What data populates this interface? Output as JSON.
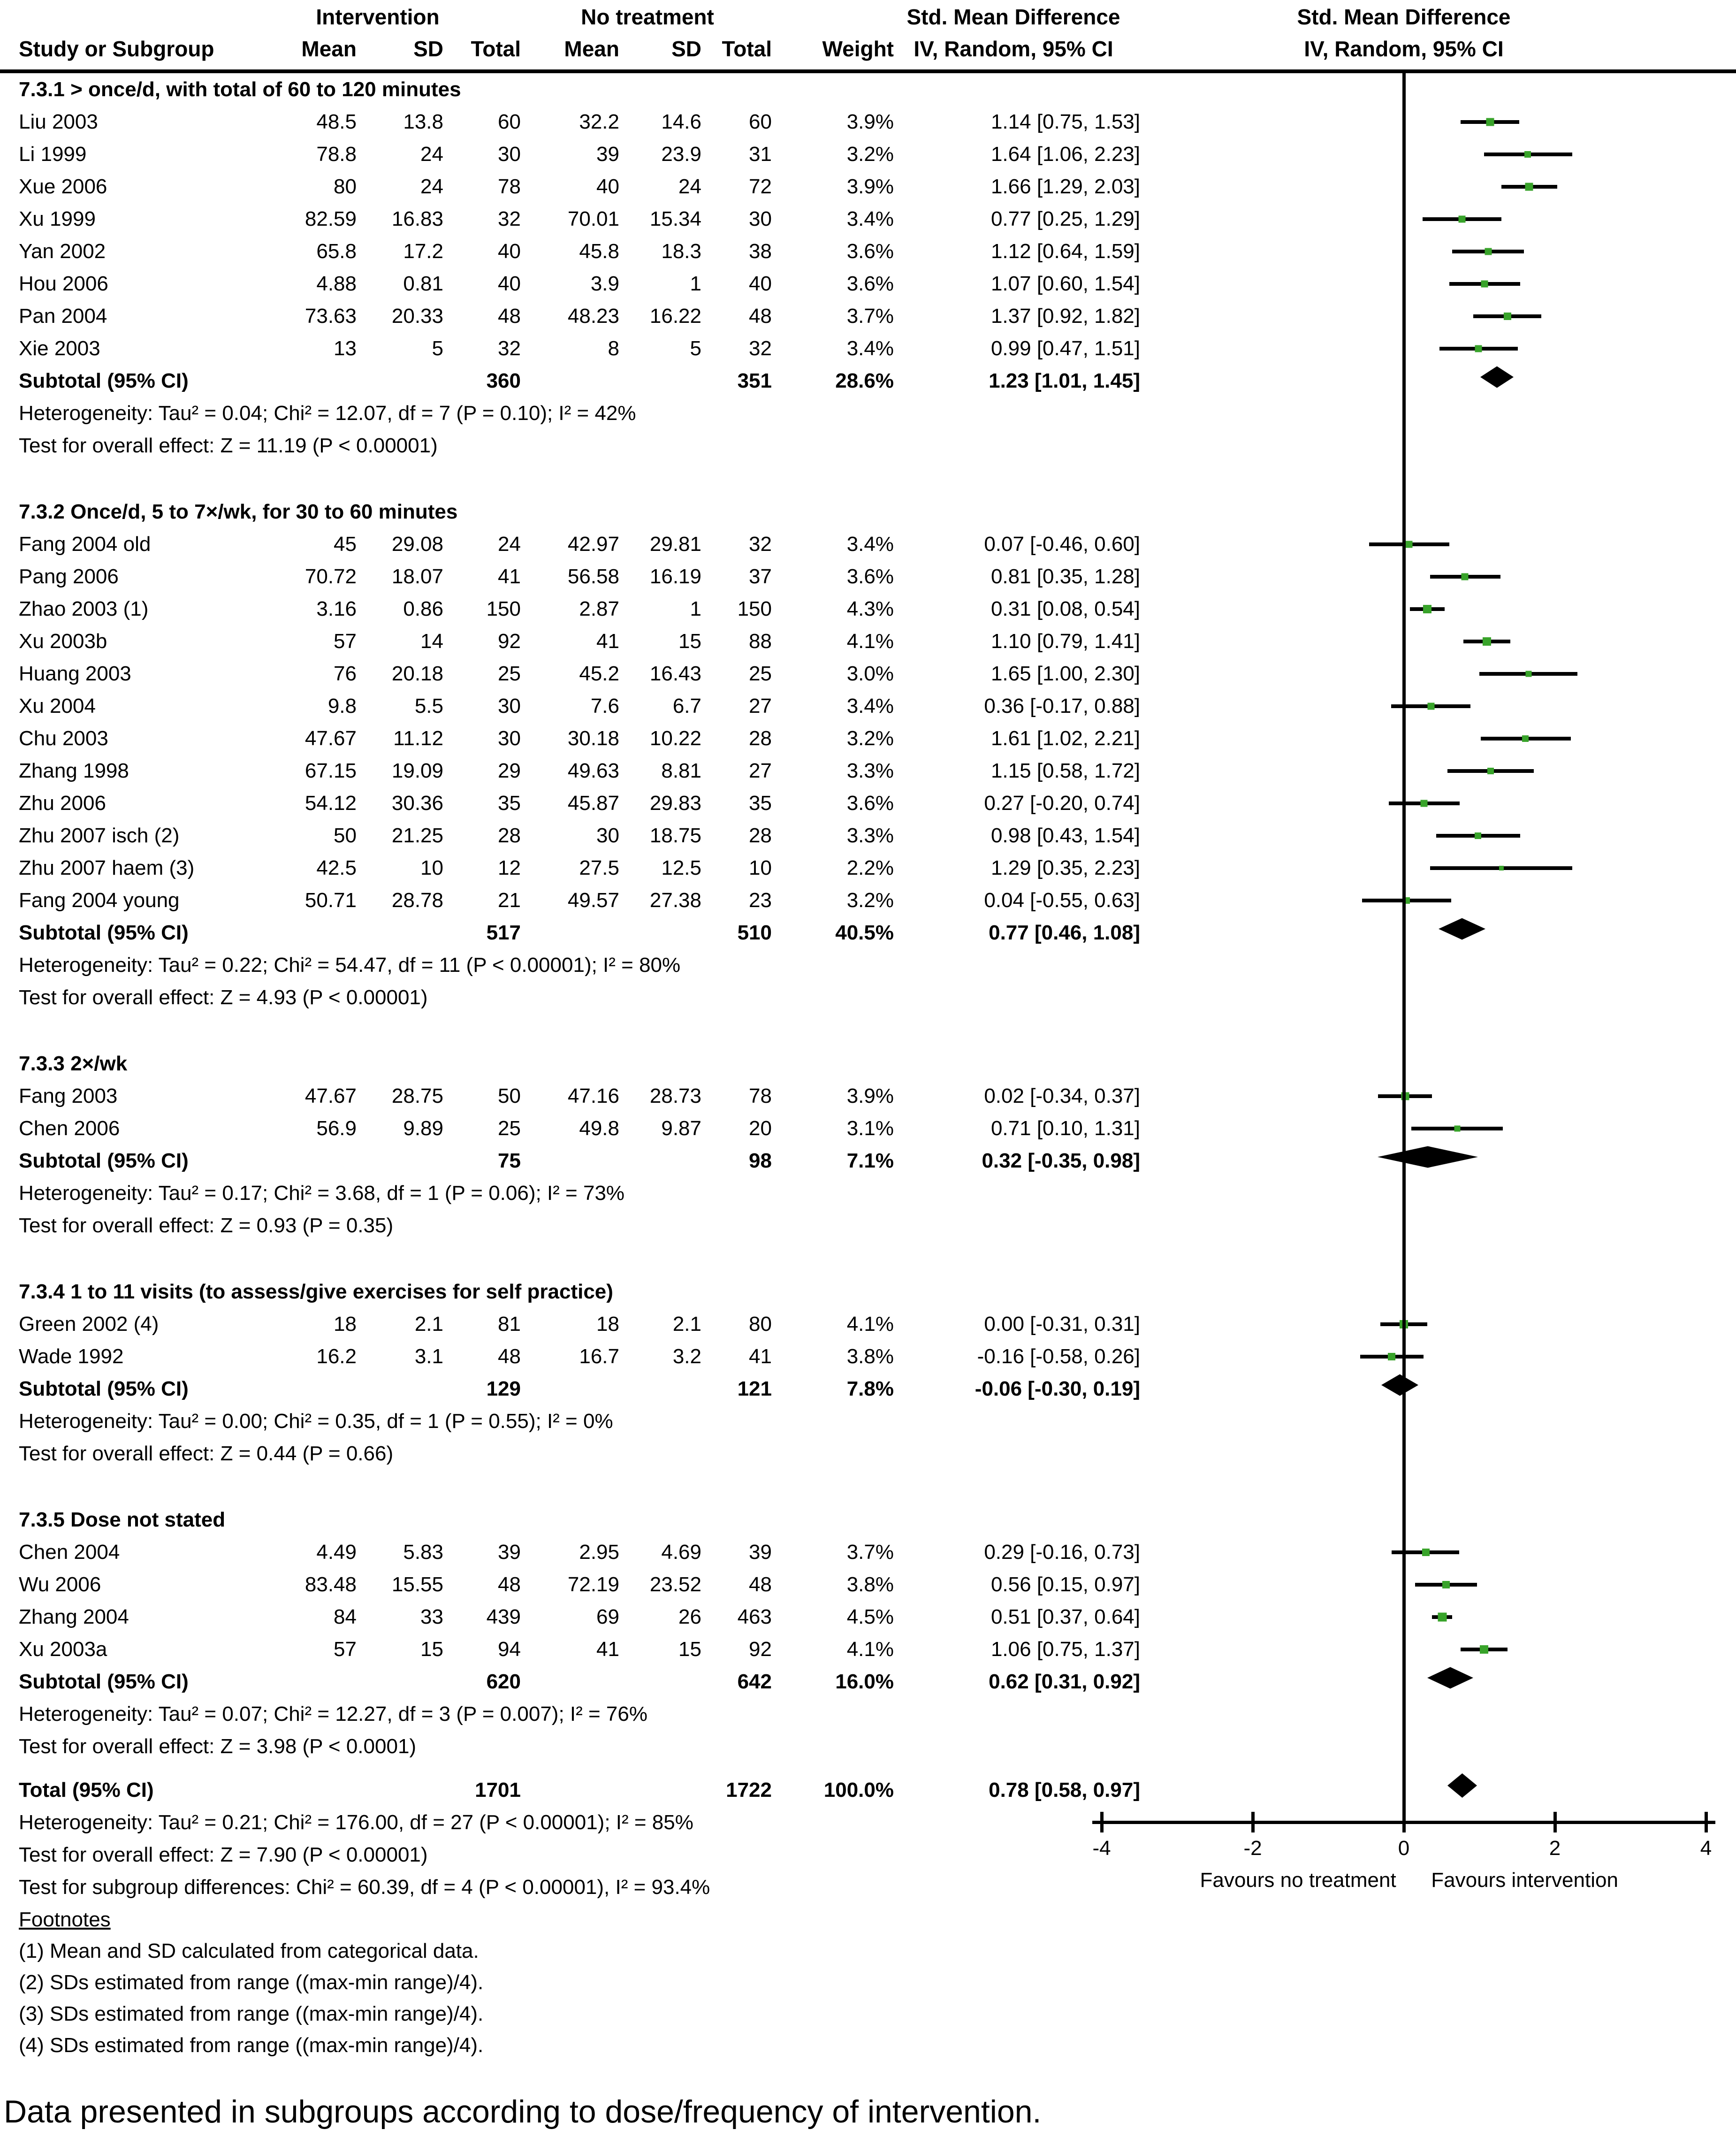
{
  "header": {
    "group_intervention": "Intervention",
    "group_no_treatment": "No treatment",
    "group_smd_text": "Std. Mean Difference",
    "group_smd_plot": "Std. Mean Difference",
    "col_study": "Study or Subgroup",
    "col_mean1": "Mean",
    "col_sd1": "SD",
    "col_total1": "Total",
    "col_mean2": "Mean",
    "col_sd2": "SD",
    "col_total2": "Total",
    "col_weight": "Weight",
    "col_ci_text": "IV, Random, 95% CI",
    "col_ci_plot": "IV, Random, 95% CI"
  },
  "colors": {
    "square_green": "#38A32A",
    "diamond_black": "#000000",
    "line_black": "#000000"
  },
  "chart_data": {
    "type": "scatter",
    "subtype": "forest",
    "effect_measure": "Std. Mean Difference",
    "method": "IV, Random, 95% CI",
    "xlim": [
      -4,
      4
    ],
    "x_ticks": [
      "-4",
      "-2",
      "0",
      "2",
      "4"
    ],
    "x_left_label": "Favours no treatment",
    "x_right_label": "Favours intervention",
    "sections": [
      {
        "title": "7.3.1 > once/d, with total of 60 to 120 minutes",
        "studies": [
          {
            "name": "Liu 2003",
            "mean1": "48.5",
            "sd1": "13.8",
            "total1": "60",
            "mean2": "32.2",
            "sd2": "14.6",
            "total2": "60",
            "weight": "3.9%",
            "w": 3.9,
            "ci": "1.14 [0.75, 1.53]",
            "est": 1.14,
            "lo": 0.75,
            "hi": 1.53
          },
          {
            "name": "Li 1999",
            "mean1": "78.8",
            "sd1": "24",
            "total1": "30",
            "mean2": "39",
            "sd2": "23.9",
            "total2": "31",
            "weight": "3.2%",
            "w": 3.2,
            "ci": "1.64 [1.06, 2.23]",
            "est": 1.64,
            "lo": 1.06,
            "hi": 2.23
          },
          {
            "name": "Xue 2006",
            "mean1": "80",
            "sd1": "24",
            "total1": "78",
            "mean2": "40",
            "sd2": "24",
            "total2": "72",
            "weight": "3.9%",
            "w": 3.9,
            "ci": "1.66 [1.29, 2.03]",
            "est": 1.66,
            "lo": 1.29,
            "hi": 2.03
          },
          {
            "name": "Xu 1999",
            "mean1": "82.59",
            "sd1": "16.83",
            "total1": "32",
            "mean2": "70.01",
            "sd2": "15.34",
            "total2": "30",
            "weight": "3.4%",
            "w": 3.4,
            "ci": "0.77 [0.25, 1.29]",
            "est": 0.77,
            "lo": 0.25,
            "hi": 1.29
          },
          {
            "name": "Yan 2002",
            "mean1": "65.8",
            "sd1": "17.2",
            "total1": "40",
            "mean2": "45.8",
            "sd2": "18.3",
            "total2": "38",
            "weight": "3.6%",
            "w": 3.6,
            "ci": "1.12 [0.64, 1.59]",
            "est": 1.12,
            "lo": 0.64,
            "hi": 1.59
          },
          {
            "name": "Hou 2006",
            "mean1": "4.88",
            "sd1": "0.81",
            "total1": "40",
            "mean2": "3.9",
            "sd2": "1",
            "total2": "40",
            "weight": "3.6%",
            "w": 3.6,
            "ci": "1.07 [0.60, 1.54]",
            "est": 1.07,
            "lo": 0.6,
            "hi": 1.54
          },
          {
            "name": "Pan 2004",
            "mean1": "73.63",
            "sd1": "20.33",
            "total1": "48",
            "mean2": "48.23",
            "sd2": "16.22",
            "total2": "48",
            "weight": "3.7%",
            "w": 3.7,
            "ci": "1.37 [0.92, 1.82]",
            "est": 1.37,
            "lo": 0.92,
            "hi": 1.82
          },
          {
            "name": "Xie 2003",
            "mean1": "13",
            "sd1": "5",
            "total1": "32",
            "mean2": "8",
            "sd2": "5",
            "total2": "32",
            "weight": "3.4%",
            "w": 3.4,
            "ci": "0.99 [0.47, 1.51]",
            "est": 0.99,
            "lo": 0.47,
            "hi": 1.51
          }
        ],
        "subtotal": {
          "label": "Subtotal (95% CI)",
          "total1": "360",
          "total2": "351",
          "weight": "28.6%",
          "ci": "1.23 [1.01, 1.45]",
          "est": 1.23,
          "lo": 1.01,
          "hi": 1.45
        },
        "heterogeneity": "Heterogeneity: Tau² = 0.04; Chi² = 12.07, df = 7 (P = 0.10); I² = 42%",
        "overall": "Test for overall effect: Z = 11.19 (P < 0.00001)"
      },
      {
        "title": "7.3.2 Once/d, 5 to 7×/wk, for 30 to 60 minutes",
        "studies": [
          {
            "name": "Fang 2004 old",
            "mean1": "45",
            "sd1": "29.08",
            "total1": "24",
            "mean2": "42.97",
            "sd2": "29.81",
            "total2": "32",
            "weight": "3.4%",
            "w": 3.4,
            "ci": "0.07 [-0.46, 0.60]",
            "est": 0.07,
            "lo": -0.46,
            "hi": 0.6
          },
          {
            "name": "Pang 2006",
            "mean1": "70.72",
            "sd1": "18.07",
            "total1": "41",
            "mean2": "56.58",
            "sd2": "16.19",
            "total2": "37",
            "weight": "3.6%",
            "w": 3.6,
            "ci": "0.81 [0.35, 1.28]",
            "est": 0.81,
            "lo": 0.35,
            "hi": 1.28
          },
          {
            "name": "Zhao 2003 (1)",
            "mean1": "3.16",
            "sd1": "0.86",
            "total1": "150",
            "mean2": "2.87",
            "sd2": "1",
            "total2": "150",
            "weight": "4.3%",
            "w": 4.3,
            "ci": "0.31 [0.08, 0.54]",
            "est": 0.31,
            "lo": 0.08,
            "hi": 0.54
          },
          {
            "name": "Xu 2003b",
            "mean1": "57",
            "sd1": "14",
            "total1": "92",
            "mean2": "41",
            "sd2": "15",
            "total2": "88",
            "weight": "4.1%",
            "w": 4.1,
            "ci": "1.10 [0.79, 1.41]",
            "est": 1.1,
            "lo": 0.79,
            "hi": 1.41
          },
          {
            "name": "Huang 2003",
            "mean1": "76",
            "sd1": "20.18",
            "total1": "25",
            "mean2": "45.2",
            "sd2": "16.43",
            "total2": "25",
            "weight": "3.0%",
            "w": 3.0,
            "ci": "1.65 [1.00, 2.30]",
            "est": 1.65,
            "lo": 1.0,
            "hi": 2.3
          },
          {
            "name": "Xu 2004",
            "mean1": "9.8",
            "sd1": "5.5",
            "total1": "30",
            "mean2": "7.6",
            "sd2": "6.7",
            "total2": "27",
            "weight": "3.4%",
            "w": 3.4,
            "ci": "0.36 [-0.17, 0.88]",
            "est": 0.36,
            "lo": -0.17,
            "hi": 0.88
          },
          {
            "name": "Chu 2003",
            "mean1": "47.67",
            "sd1": "11.12",
            "total1": "30",
            "mean2": "30.18",
            "sd2": "10.22",
            "total2": "28",
            "weight": "3.2%",
            "w": 3.2,
            "ci": "1.61 [1.02, 2.21]",
            "est": 1.61,
            "lo": 1.02,
            "hi": 2.21
          },
          {
            "name": "Zhang 1998",
            "mean1": "67.15",
            "sd1": "19.09",
            "total1": "29",
            "mean2": "49.63",
            "sd2": "8.81",
            "total2": "27",
            "weight": "3.3%",
            "w": 3.3,
            "ci": "1.15 [0.58, 1.72]",
            "est": 1.15,
            "lo": 0.58,
            "hi": 1.72
          },
          {
            "name": "Zhu 2006",
            "mean1": "54.12",
            "sd1": "30.36",
            "total1": "35",
            "mean2": "45.87",
            "sd2": "29.83",
            "total2": "35",
            "weight": "3.6%",
            "w": 3.6,
            "ci": "0.27 [-0.20, 0.74]",
            "est": 0.27,
            "lo": -0.2,
            "hi": 0.74
          },
          {
            "name": "Zhu 2007 isch (2)",
            "mean1": "50",
            "sd1": "21.25",
            "total1": "28",
            "mean2": "30",
            "sd2": "18.75",
            "total2": "28",
            "weight": "3.3%",
            "w": 3.3,
            "ci": "0.98 [0.43, 1.54]",
            "est": 0.98,
            "lo": 0.43,
            "hi": 1.54
          },
          {
            "name": "Zhu 2007 haem (3)",
            "mean1": "42.5",
            "sd1": "10",
            "total1": "12",
            "mean2": "27.5",
            "sd2": "12.5",
            "total2": "10",
            "weight": "2.2%",
            "w": 2.2,
            "ci": "1.29 [0.35, 2.23]",
            "est": 1.29,
            "lo": 0.35,
            "hi": 2.23
          },
          {
            "name": "Fang 2004 young",
            "mean1": "50.71",
            "sd1": "28.78",
            "total1": "21",
            "mean2": "49.57",
            "sd2": "27.38",
            "total2": "23",
            "weight": "3.2%",
            "w": 3.2,
            "ci": "0.04 [-0.55, 0.63]",
            "est": 0.04,
            "lo": -0.55,
            "hi": 0.63
          }
        ],
        "subtotal": {
          "label": "Subtotal (95% CI)",
          "total1": "517",
          "total2": "510",
          "weight": "40.5%",
          "ci": "0.77 [0.46, 1.08]",
          "est": 0.77,
          "lo": 0.46,
          "hi": 1.08
        },
        "heterogeneity": "Heterogeneity: Tau² = 0.22; Chi² = 54.47, df = 11 (P < 0.00001); I² = 80%",
        "overall": "Test for overall effect: Z = 4.93 (P < 0.00001)"
      },
      {
        "title": "7.3.3 2×/wk",
        "studies": [
          {
            "name": "Fang 2003",
            "mean1": "47.67",
            "sd1": "28.75",
            "total1": "50",
            "mean2": "47.16",
            "sd2": "28.73",
            "total2": "78",
            "weight": "3.9%",
            "w": 3.9,
            "ci": "0.02 [-0.34, 0.37]",
            "est": 0.02,
            "lo": -0.34,
            "hi": 0.37
          },
          {
            "name": "Chen 2006",
            "mean1": "56.9",
            "sd1": "9.89",
            "total1": "25",
            "mean2": "49.8",
            "sd2": "9.87",
            "total2": "20",
            "weight": "3.1%",
            "w": 3.1,
            "ci": "0.71 [0.10, 1.31]",
            "est": 0.71,
            "lo": 0.1,
            "hi": 1.31
          }
        ],
        "subtotal": {
          "label": "Subtotal (95% CI)",
          "total1": "75",
          "total2": "98",
          "weight": "7.1%",
          "ci": "0.32 [-0.35, 0.98]",
          "est": 0.32,
          "lo": -0.35,
          "hi": 0.98
        },
        "heterogeneity": "Heterogeneity: Tau² = 0.17; Chi² = 3.68, df = 1 (P = 0.06); I² = 73%",
        "overall": "Test for overall effect: Z = 0.93 (P = 0.35)"
      },
      {
        "title": "7.3.4 1 to 11 visits (to assess/give exercises for self practice)",
        "studies": [
          {
            "name": "Green 2002 (4)",
            "mean1": "18",
            "sd1": "2.1",
            "total1": "81",
            "mean2": "18",
            "sd2": "2.1",
            "total2": "80",
            "weight": "4.1%",
            "w": 4.1,
            "ci": "0.00 [-0.31, 0.31]",
            "est": 0.0,
            "lo": -0.31,
            "hi": 0.31
          },
          {
            "name": "Wade 1992",
            "mean1": "16.2",
            "sd1": "3.1",
            "total1": "48",
            "mean2": "16.7",
            "sd2": "3.2",
            "total2": "41",
            "weight": "3.8%",
            "w": 3.8,
            "ci": "-0.16 [-0.58, 0.26]",
            "est": -0.16,
            "lo": -0.58,
            "hi": 0.26
          }
        ],
        "subtotal": {
          "label": "Subtotal (95% CI)",
          "total1": "129",
          "total2": "121",
          "weight": "7.8%",
          "ci": "-0.06 [-0.30, 0.19]",
          "est": -0.06,
          "lo": -0.3,
          "hi": 0.19
        },
        "heterogeneity": "Heterogeneity: Tau² = 0.00; Chi² = 0.35, df = 1 (P = 0.55); I² = 0%",
        "overall": "Test for overall effect: Z = 0.44 (P = 0.66)"
      },
      {
        "title": "7.3.5 Dose not stated",
        "studies": [
          {
            "name": "Chen 2004",
            "mean1": "4.49",
            "sd1": "5.83",
            "total1": "39",
            "mean2": "2.95",
            "sd2": "4.69",
            "total2": "39",
            "weight": "3.7%",
            "w": 3.7,
            "ci": "0.29 [-0.16, 0.73]",
            "est": 0.29,
            "lo": -0.16,
            "hi": 0.73
          },
          {
            "name": "Wu 2006",
            "mean1": "83.48",
            "sd1": "15.55",
            "total1": "48",
            "mean2": "72.19",
            "sd2": "23.52",
            "total2": "48",
            "weight": "3.8%",
            "w": 3.8,
            "ci": "0.56 [0.15, 0.97]",
            "est": 0.56,
            "lo": 0.15,
            "hi": 0.97
          },
          {
            "name": "Zhang 2004",
            "mean1": "84",
            "sd1": "33",
            "total1": "439",
            "mean2": "69",
            "sd2": "26",
            "total2": "463",
            "weight": "4.5%",
            "w": 4.5,
            "ci": "0.51 [0.37, 0.64]",
            "est": 0.51,
            "lo": 0.37,
            "hi": 0.64
          },
          {
            "name": "Xu 2003a",
            "mean1": "57",
            "sd1": "15",
            "total1": "94",
            "mean2": "41",
            "sd2": "15",
            "total2": "92",
            "weight": "4.1%",
            "w": 4.1,
            "ci": "1.06 [0.75, 1.37]",
            "est": 1.06,
            "lo": 0.75,
            "hi": 1.37
          }
        ],
        "subtotal": {
          "label": "Subtotal (95% CI)",
          "total1": "620",
          "total2": "642",
          "weight": "16.0%",
          "ci": "0.62 [0.31, 0.92]",
          "est": 0.62,
          "lo": 0.31,
          "hi": 0.92
        },
        "heterogeneity": "Heterogeneity: Tau² = 0.07; Chi² = 12.27, df = 3 (P = 0.007); I² = 76%",
        "overall": "Test for overall effect: Z = 3.98 (P < 0.0001)"
      }
    ],
    "total": {
      "label": "Total (95% CI)",
      "total1": "1701",
      "total2": "1722",
      "weight": "100.0%",
      "ci": "0.78 [0.58, 0.97]",
      "est": 0.78,
      "lo": 0.58,
      "hi": 0.97,
      "heterogeneity": "Heterogeneity: Tau² = 0.21; Chi² = 176.00, df = 27 (P < 0.00001); I² = 85%",
      "overall": "Test for overall effect: Z = 7.90 (P < 0.00001)",
      "subgroup_diff": "Test for subgroup differences: Chi² = 60.39, df = 4 (P < 0.00001), I² = 93.4%"
    }
  },
  "footnotes": {
    "heading": "Footnotes",
    "items": [
      "(1) Mean and SD calculated from categorical data.",
      "(2) SDs estimated from range ((max-min range)/4).",
      "(3) SDs estimated from range ((max-min range)/4).",
      "(4) SDs estimated from range ((max-min range)/4)."
    ]
  },
  "caption": "Data presented in subgroups according to dose/frequency of intervention."
}
